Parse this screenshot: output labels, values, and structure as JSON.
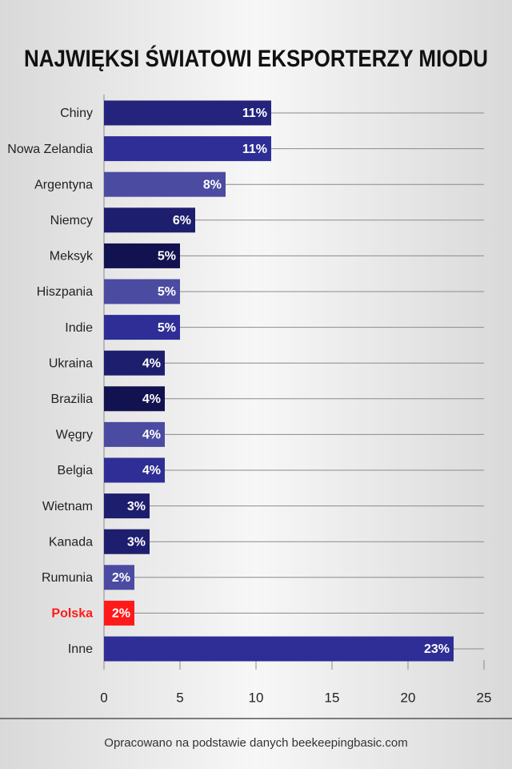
{
  "chart_data": {
    "type": "bar",
    "orientation": "horizontal",
    "title": "NAJWIĘKSI ŚWIATOWI EKSPORTERZY MIODU",
    "source": "Opracowano na podstawie danych beekeepingbasic.com",
    "categories": [
      "Chiny",
      "Nowa Zelandia",
      "Argentyna",
      "Niemcy",
      "Meksyk",
      "Hiszpania",
      "Indie",
      "Ukraina",
      "Brazilia",
      "Węgry",
      "Belgia",
      "Wietnam",
      "Kanada",
      "Rumunia",
      "Polska",
      "Inne"
    ],
    "values": [
      11,
      11,
      8,
      6,
      5,
      5,
      5,
      4,
      4,
      4,
      4,
      3,
      3,
      2,
      2,
      23
    ],
    "value_labels": [
      "11%",
      "11%",
      "8%",
      "6%",
      "5%",
      "5%",
      "5%",
      "4%",
      "4%",
      "4%",
      "4%",
      "3%",
      "3%",
      "2%",
      "2%",
      "23%"
    ],
    "colors": [
      "#24247c",
      "#2e2e96",
      "#4b4ba2",
      "#1e1e6e",
      "#121250",
      "#4b4ba2",
      "#2e2e96",
      "#1e1e6e",
      "#121250",
      "#4b4ba2",
      "#2e2e96",
      "#1e1e6e",
      "#1e1e6e",
      "#4b4ba2",
      "#ff1a1a",
      "#2e2e96"
    ],
    "highlight_color": "#ff1a1a",
    "xlim": [
      0,
      25
    ],
    "xticks": [
      0,
      5,
      10,
      15,
      20,
      25
    ],
    "grid": true
  }
}
